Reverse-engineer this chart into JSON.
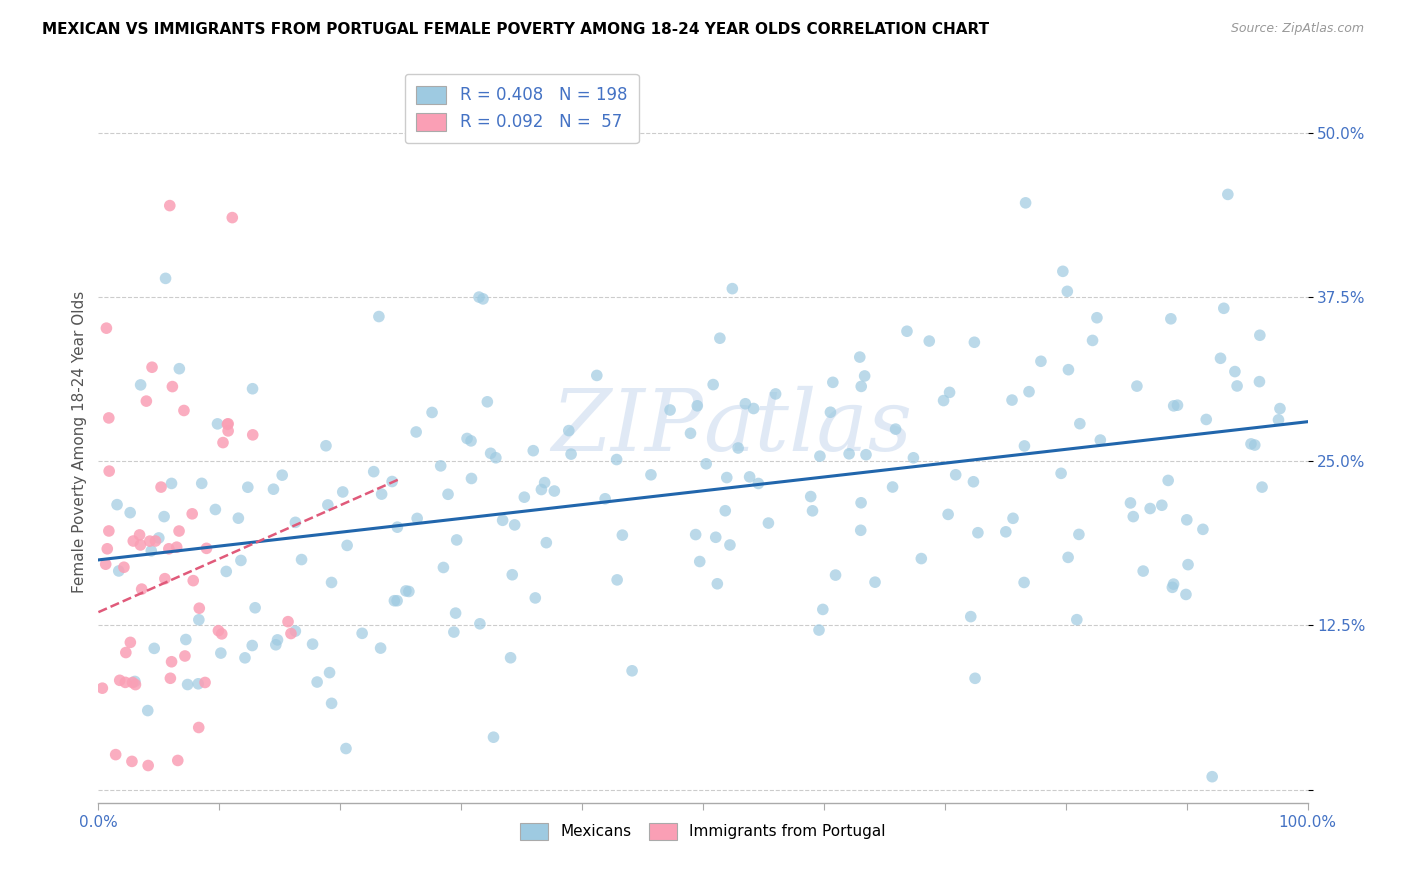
{
  "title": "MEXICAN VS IMMIGRANTS FROM PORTUGAL FEMALE POVERTY AMONG 18-24 YEAR OLDS CORRELATION CHART",
  "source": "Source: ZipAtlas.com",
  "ylabel": "Female Poverty Among 18-24 Year Olds",
  "xlim": [
    0.0,
    1.0
  ],
  "ylim": [
    -0.01,
    0.54
  ],
  "yticks": [
    0.0,
    0.125,
    0.25,
    0.375,
    0.5
  ],
  "ytick_labels": [
    "",
    "12.5%",
    "25.0%",
    "37.5%",
    "50.0%"
  ],
  "blue_R": 0.408,
  "blue_N": 198,
  "pink_R": 0.092,
  "pink_N": 57,
  "blue_color": "#9ecae1",
  "pink_color": "#fa9fb5",
  "blue_line_color": "#2166ac",
  "pink_line_color": "#e05a7a",
  "legend_label_blue": "Mexicans",
  "legend_label_pink": "Immigrants from Portugal",
  "title_fontsize": 11,
  "seed": 42
}
